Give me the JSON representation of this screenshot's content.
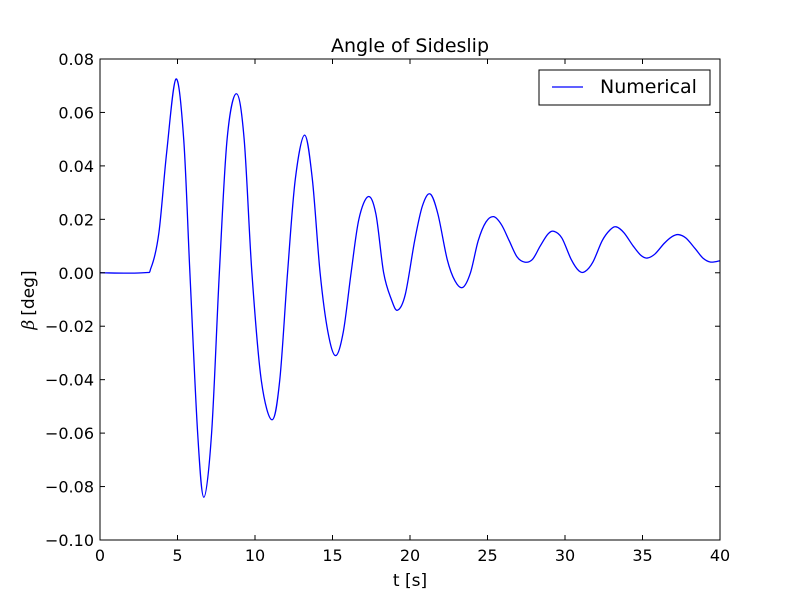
{
  "chart_data": {
    "type": "line",
    "title": "Angle of Sideslip",
    "xlabel": "t [s]",
    "ylabel_symbol": "β",
    "ylabel": "[deg]",
    "xlim": [
      0,
      40
    ],
    "ylim": [
      -0.1,
      0.08
    ],
    "xticks": [
      0,
      5,
      10,
      15,
      20,
      25,
      30,
      35,
      40
    ],
    "xtick_labels": [
      "0",
      "5",
      "10",
      "15",
      "20",
      "25",
      "30",
      "35",
      "40"
    ],
    "yticks": [
      -0.1,
      -0.08,
      -0.06,
      -0.04,
      -0.02,
      0.0,
      0.02,
      0.04,
      0.06,
      0.08
    ],
    "ytick_labels": [
      "−0.10",
      "−0.08",
      "−0.06",
      "−0.04",
      "−0.02",
      "0.00",
      "0.02",
      "0.04",
      "0.06",
      "0.08"
    ],
    "grid": false,
    "legend_position": "top-right",
    "series": [
      {
        "name": "Numerical",
        "color": "#0000ff",
        "points": [
          [
            0,
            0.0
          ],
          [
            2.8,
            0.0
          ],
          [
            3.3,
            0.002
          ],
          [
            3.8,
            0.015
          ],
          [
            4.3,
            0.045
          ],
          [
            4.9,
            0.0725
          ],
          [
            5.4,
            0.05
          ],
          [
            5.8,
            0.0
          ],
          [
            6.3,
            -0.06
          ],
          [
            6.7,
            -0.084
          ],
          [
            7.2,
            -0.06
          ],
          [
            7.7,
            0.0
          ],
          [
            8.2,
            0.05
          ],
          [
            8.8,
            0.067
          ],
          [
            9.3,
            0.05
          ],
          [
            9.8,
            0.0
          ],
          [
            10.4,
            -0.04
          ],
          [
            11.1,
            -0.055
          ],
          [
            11.6,
            -0.04
          ],
          [
            12.1,
            0.0
          ],
          [
            12.6,
            0.035
          ],
          [
            13.2,
            0.0515
          ],
          [
            13.7,
            0.035
          ],
          [
            14.2,
            0.0
          ],
          [
            14.7,
            -0.022
          ],
          [
            15.2,
            -0.031
          ],
          [
            15.7,
            -0.022
          ],
          [
            16.2,
            0.0
          ],
          [
            16.7,
            0.02
          ],
          [
            17.3,
            0.0285
          ],
          [
            17.8,
            0.022
          ],
          [
            18.3,
            0.0
          ],
          [
            18.8,
            -0.01
          ],
          [
            19.2,
            -0.014
          ],
          [
            19.7,
            -0.008
          ],
          [
            20.3,
            0.012
          ],
          [
            20.8,
            0.025
          ],
          [
            21.3,
            0.0295
          ],
          [
            21.8,
            0.022
          ],
          [
            22.4,
            0.005
          ],
          [
            22.9,
            -0.003
          ],
          [
            23.4,
            -0.0055
          ],
          [
            23.9,
            0.0
          ],
          [
            24.4,
            0.012
          ],
          [
            24.9,
            0.019
          ],
          [
            25.4,
            0.021
          ],
          [
            25.9,
            0.018
          ],
          [
            26.4,
            0.012
          ],
          [
            26.9,
            0.006
          ],
          [
            27.4,
            0.004
          ],
          [
            27.9,
            0.005
          ],
          [
            28.4,
            0.01
          ],
          [
            28.9,
            0.0145
          ],
          [
            29.3,
            0.0155
          ],
          [
            29.8,
            0.013
          ],
          [
            30.4,
            0.005
          ],
          [
            30.9,
            0.0007
          ],
          [
            31.3,
            0.0005
          ],
          [
            31.8,
            0.004
          ],
          [
            32.4,
            0.012
          ],
          [
            32.9,
            0.016
          ],
          [
            33.3,
            0.0172
          ],
          [
            33.8,
            0.015
          ],
          [
            34.4,
            0.01
          ],
          [
            34.9,
            0.0065
          ],
          [
            35.3,
            0.0055
          ],
          [
            35.8,
            0.007
          ],
          [
            36.4,
            0.011
          ],
          [
            36.9,
            0.0135
          ],
          [
            37.3,
            0.0143
          ],
          [
            37.8,
            0.013
          ],
          [
            38.4,
            0.009
          ],
          [
            38.9,
            0.0055
          ],
          [
            39.4,
            0.004
          ],
          [
            40,
            0.0045
          ]
        ]
      }
    ]
  }
}
